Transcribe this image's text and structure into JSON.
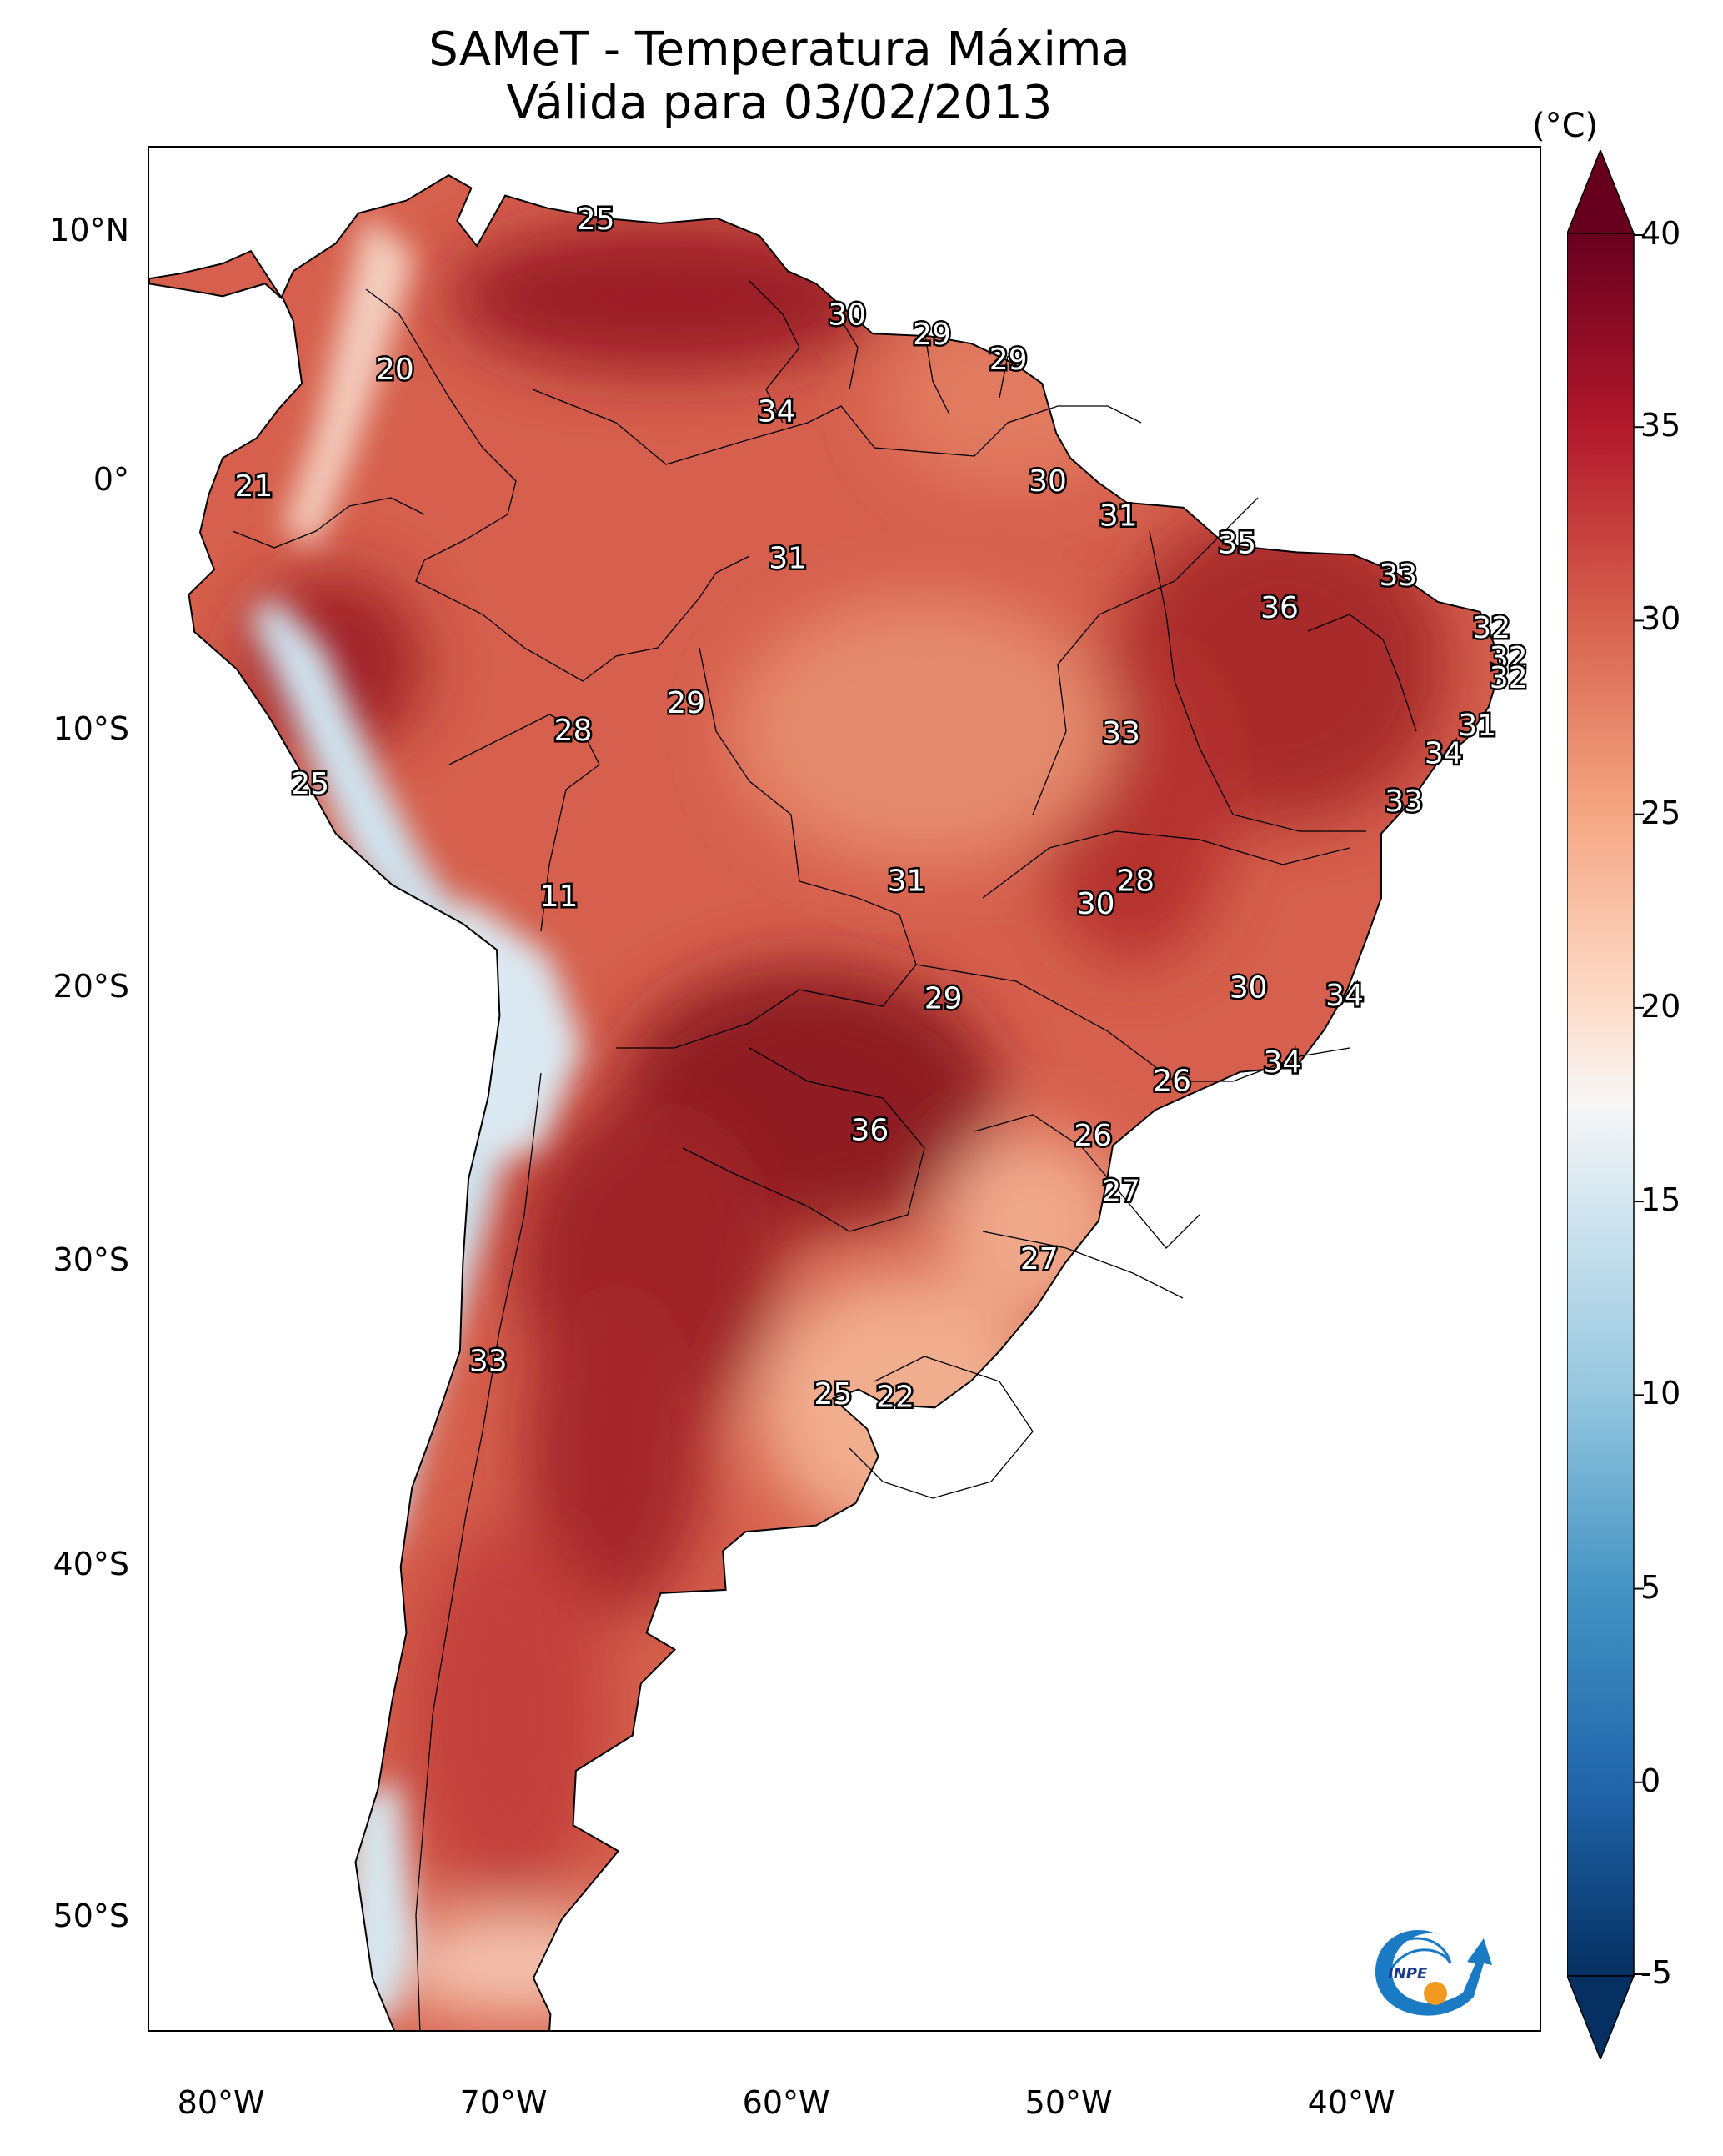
{
  "title": {
    "line1": "SAMeT - Temperatura Máxima",
    "line2": "Válida para 03/02/2013"
  },
  "axes": {
    "lat_labels": [
      "10°N",
      "0°",
      "10°S",
      "20°S",
      "30°S",
      "40°S",
      "50°S"
    ],
    "lon_labels": [
      "80°W",
      "70°W",
      "60°W",
      "50°W",
      "40°W"
    ]
  },
  "colorbar": {
    "unit": "(°C)",
    "ticks": [
      "40",
      "35",
      "30",
      "25",
      "20",
      "15",
      "10",
      "5",
      "0",
      "-5"
    ],
    "min": -5,
    "max": 40,
    "colormap": "RdBu_r",
    "extend": "both"
  },
  "logo": {
    "text": "INPE",
    "colors": {
      "arrow": "#1a7bc4",
      "sun": "#f29a1f"
    }
  },
  "labels": [
    {
      "value": "25",
      "lon": -66.8,
      "lat": 10.5
    },
    {
      "value": "20",
      "lon": -73.9,
      "lat": 4.5
    },
    {
      "value": "30",
      "lon": -57.9,
      "lat": 6.7
    },
    {
      "value": "29",
      "lon": -54.9,
      "lat": 5.9
    },
    {
      "value": "29",
      "lon": -52.2,
      "lat": 4.9
    },
    {
      "value": "34",
      "lon": -60.4,
      "lat": 2.8
    },
    {
      "value": "21",
      "lon": -78.9,
      "lat": -0.2
    },
    {
      "value": "30",
      "lon": -50.8,
      "lat": 0.0
    },
    {
      "value": "31",
      "lon": -48.3,
      "lat": -1.4
    },
    {
      "value": "35",
      "lon": -44.1,
      "lat": -2.5
    },
    {
      "value": "31",
      "lon": -60.0,
      "lat": -3.1
    },
    {
      "value": "33",
      "lon": -38.4,
      "lat": -3.8
    },
    {
      "value": "36",
      "lon": -42.6,
      "lat": -5.1
    },
    {
      "value": "32",
      "lon": -35.1,
      "lat": -5.9
    },
    {
      "value": "32",
      "lon": -34.5,
      "lat": -7.1
    },
    {
      "value": "32",
      "lon": -34.5,
      "lat": -7.9
    },
    {
      "value": "29",
      "lon": -63.6,
      "lat": -8.9
    },
    {
      "value": "28",
      "lon": -67.6,
      "lat": -10.0
    },
    {
      "value": "33",
      "lon": -48.2,
      "lat": -10.1
    },
    {
      "value": "31",
      "lon": -35.6,
      "lat": -9.8
    },
    {
      "value": "34",
      "lon": -36.8,
      "lat": -10.9
    },
    {
      "value": "25",
      "lon": -76.9,
      "lat": -12.1
    },
    {
      "value": "33",
      "lon": -38.2,
      "lat": -12.8
    },
    {
      "value": "11",
      "lon": -68.1,
      "lat": -16.5
    },
    {
      "value": "31",
      "lon": -55.8,
      "lat": -15.9
    },
    {
      "value": "28",
      "lon": -47.7,
      "lat": -15.9
    },
    {
      "value": "30",
      "lon": -49.1,
      "lat": -16.8
    },
    {
      "value": "30",
      "lon": -43.7,
      "lat": -20.0
    },
    {
      "value": "34",
      "lon": -40.3,
      "lat": -20.3
    },
    {
      "value": "29",
      "lon": -54.5,
      "lat": -20.4
    },
    {
      "value": "34",
      "lon": -42.5,
      "lat": -22.8
    },
    {
      "value": "26",
      "lon": -46.4,
      "lat": -23.5
    },
    {
      "value": "36",
      "lon": -57.1,
      "lat": -25.3
    },
    {
      "value": "26",
      "lon": -49.2,
      "lat": -25.5
    },
    {
      "value": "27",
      "lon": -48.2,
      "lat": -27.5
    },
    {
      "value": "27",
      "lon": -51.1,
      "lat": -29.9
    },
    {
      "value": "33",
      "lon": -70.6,
      "lat": -33.4
    },
    {
      "value": "25",
      "lon": -58.4,
      "lat": -34.5
    },
    {
      "value": "22",
      "lon": -56.2,
      "lat": -34.6
    }
  ]
}
